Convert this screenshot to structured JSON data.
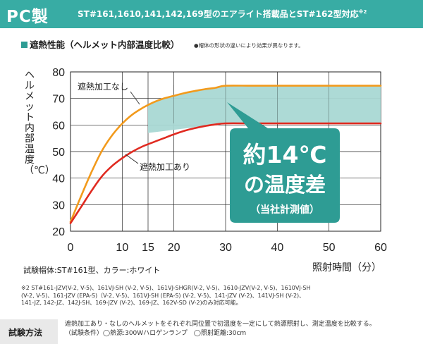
{
  "header": {
    "label": "PC製",
    "note": "ST#161,1610,141,142,169型のエアライト搭載品とST#162型対応",
    "note_sup": "※2"
  },
  "section": {
    "title": "遮熱性能（ヘルメット内部温度比較）",
    "note": "●帽体の形状の違いにより効果が異なります。"
  },
  "chart_data": {
    "type": "line",
    "ylabel": "ヘルメット内部温度（℃）",
    "xlabel": "照射時間（分）",
    "xlim": [
      0,
      60
    ],
    "ylim": [
      20,
      80
    ],
    "xticks": [
      "0",
      "10",
      "15",
      "20",
      "30",
      "40",
      "50",
      "60"
    ],
    "xtick_values": [
      0,
      10,
      15,
      20,
      30,
      40,
      50,
      60
    ],
    "yticks": [
      "20",
      "30",
      "40",
      "50",
      "60",
      "70",
      "80"
    ],
    "ytick_values": [
      20,
      30,
      40,
      50,
      60,
      70,
      80
    ],
    "grid": true,
    "series": [
      {
        "name": "遮熱加工なし",
        "color": "#f29a1c",
        "x": [
          0,
          2,
          4,
          6,
          8,
          10,
          12,
          14,
          16,
          18,
          20,
          22,
          24,
          26,
          28,
          30,
          35,
          40,
          45,
          50,
          55,
          60
        ],
        "y": [
          23.5,
          33,
          42,
          50,
          56,
          60.5,
          64,
          66.5,
          68.5,
          70,
          71,
          72,
          72.8,
          73.5,
          74,
          74.8,
          74.8,
          74.8,
          74.8,
          74.8,
          74.8,
          74.8
        ]
      },
      {
        "name": "遮熱加工あり",
        "color": "#e02a20",
        "x": [
          0,
          2,
          4,
          6,
          8,
          10,
          12,
          14,
          16,
          18,
          20,
          22,
          24,
          26,
          28,
          30,
          35,
          40,
          45,
          50,
          55,
          60
        ],
        "y": [
          23,
          29,
          35,
          40.5,
          44.5,
          47.5,
          50,
          52,
          53.5,
          55,
          56.5,
          57.8,
          58.8,
          59.6,
          60.2,
          60.6,
          60.6,
          60.6,
          60.6,
          60.6,
          60.6,
          60.6
        ]
      }
    ],
    "callout": {
      "line1": "約14℃",
      "line2": "の温度差",
      "line3": "（当社計測値）"
    }
  },
  "specimen": "試験帽体:ST#161型、カラー:ホワイト",
  "footnote": {
    "line1": "※2 ST#161-JZV(V-2, V-5)、161VJ-SH (V-2, V-5)、161VJ-SHGR(V-2, V-5)、1610-JZV(V-2, V-5)、1610VJ-SH",
    "line2": "(V-2, V-5)、161-JZV (EPA-S)（V-2, V-5)、161VJ-SH (EPA-S) (V-2, V-5)、141-JZV (V-2)、141VJ-SH (V-2)、",
    "line3": "141-JZ, 142-JZ、142J-SH、169-JZV (V-2)、169-JZ、162V-SD (V-2)のみ対応可能。"
  },
  "method": {
    "label": "試験方法",
    "line1": "遮熱加工あり・なしのヘルメットをそれぞれ同位置で初温度を一定にして熱源照射し、測定温度を比較する。",
    "line2": "（試験条件）◯熱源:300Wハロゲンランプ　◯照射距離:30cm"
  },
  "colors": {
    "header": "#38aca4",
    "band_fill": "#a9d8d4",
    "callout_fill": "#2e9c94",
    "grid": "#222222"
  }
}
